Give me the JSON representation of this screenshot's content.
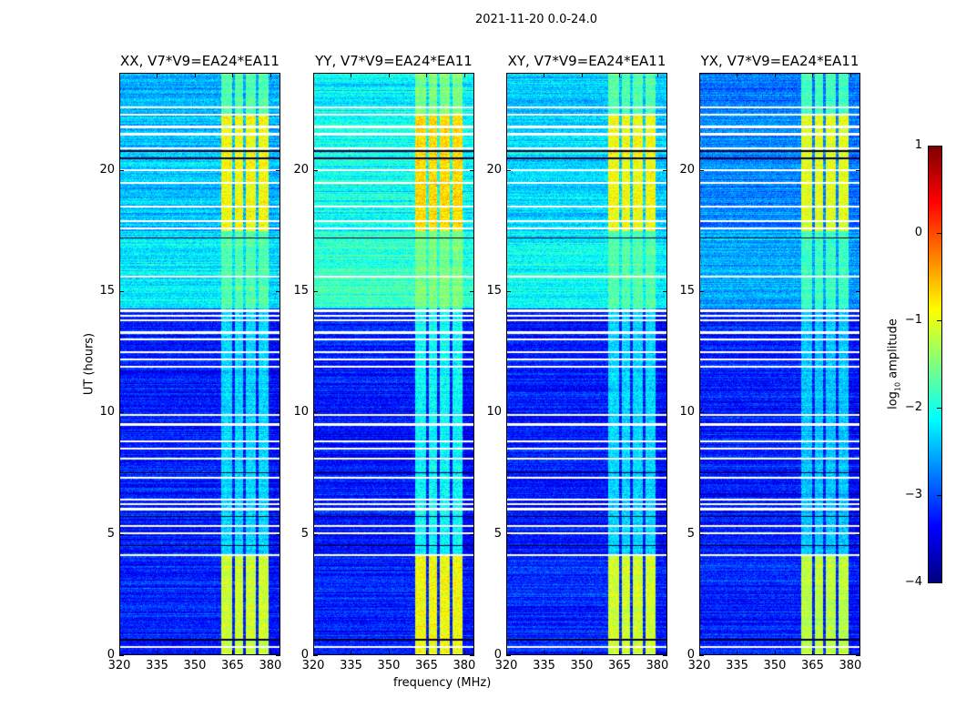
{
  "chart_data": {
    "type": "heatmap",
    "title": "2021-11-20 0.0-24.0",
    "xlabel": "frequency (MHz)",
    "ylabel": "UT (hours)",
    "xlim": [
      320,
      384
    ],
    "ylim": [
      0,
      24
    ],
    "xticks": [
      320,
      335,
      350,
      365,
      380
    ],
    "yticks": [
      0,
      5,
      10,
      15,
      20
    ],
    "colorbar": {
      "label_prefix": "log",
      "label_sub": "10",
      "label_suffix": " amplitude",
      "range": [
        -4,
        1
      ],
      "ticks": [
        1,
        0,
        -1,
        -2,
        -3,
        -4
      ],
      "colormap": "jet"
    },
    "panels": [
      {
        "title": "XX, V7*V9=EA24*EA11",
        "upper_offset": 0.0,
        "band_offset": 0.0
      },
      {
        "title": "YY, V7*V9=EA24*EA11",
        "upper_offset": 0.35,
        "band_offset": 0.2
      },
      {
        "title": "XY, V7*V9=EA24*EA11",
        "upper_offset": 0.1,
        "band_offset": 0.0
      },
      {
        "title": "YX, V7*V9=EA24*EA11",
        "upper_offset": -0.3,
        "band_offset": -0.1
      }
    ],
    "rfi_subbands_mhz": [
      [
        360.5,
        364.8
      ],
      [
        366.0,
        369.5
      ],
      [
        370.6,
        374.6
      ],
      [
        375.7,
        379.6
      ]
    ],
    "time_segments": [
      {
        "start": 0.0,
        "end": 4.1,
        "background": -3.2,
        "band": -1.1
      },
      {
        "start": 4.1,
        "end": 14.3,
        "background": -3.25,
        "band": -2.3
      },
      {
        "start": 14.3,
        "end": 17.5,
        "background": -2.2,
        "band": -1.7
      },
      {
        "start": 17.5,
        "end": 22.3,
        "background": -2.4,
        "band": -0.9
      },
      {
        "start": 22.3,
        "end": 24.0,
        "background": -2.5,
        "band": -1.7
      }
    ],
    "flagged_hours": [
      0.3,
      4.1,
      5.0,
      5.3,
      6.0,
      6.2,
      6.4,
      7.3,
      8.1,
      8.5,
      8.8,
      9.5,
      9.9,
      11.9,
      12.2,
      12.5,
      13.0,
      13.3,
      13.8,
      14.0,
      14.2,
      15.6,
      17.6,
      17.9,
      18.5,
      19.5,
      20.0,
      20.9,
      21.5,
      21.8,
      22.3,
      22.6
    ],
    "dark_hours": [
      0.6,
      4.5,
      5.7,
      7.5,
      17.2,
      20.5,
      20.8
    ]
  }
}
